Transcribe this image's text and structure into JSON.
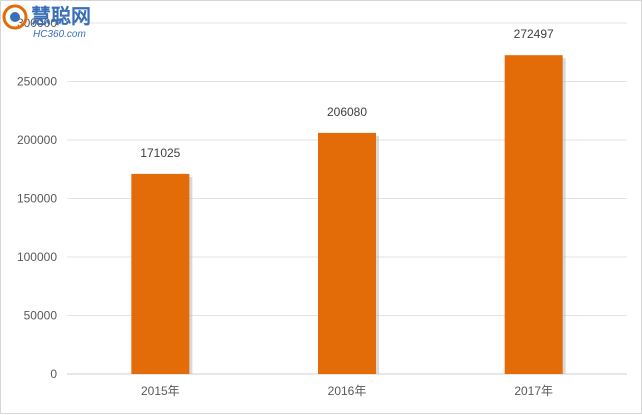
{
  "chart_data": {
    "type": "bar",
    "categories": [
      "2015年",
      "2016年",
      "2017年"
    ],
    "values": [
      171025,
      206080,
      272497
    ],
    "ylim": [
      0,
      300000
    ],
    "yticks": [
      0,
      50000,
      100000,
      150000,
      200000,
      250000,
      300000
    ],
    "grid": true,
    "bar_color": "#e36c09",
    "data_labels": true
  },
  "watermark": {
    "brand": "慧聪网",
    "domain": "HC360.com"
  }
}
